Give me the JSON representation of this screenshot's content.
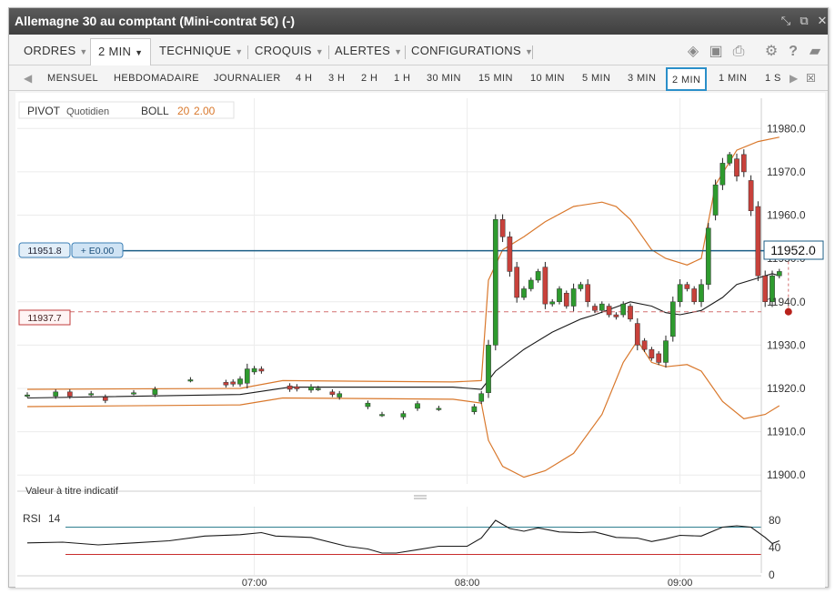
{
  "window": {
    "title": "Allemagne 30 au comptant (Mini-contrat 5€) (-)",
    "controls": [
      "fit-icon",
      "popout-icon",
      "close-icon"
    ]
  },
  "toolbar": {
    "menus": [
      {
        "label": "ORDRES"
      },
      {
        "label": "2 MIN"
      },
      {
        "label": "TECHNIQUE"
      },
      {
        "label": "CROQUIS"
      },
      {
        "label": "ALERTES"
      },
      {
        "label": "CONFIGURATIONS"
      }
    ],
    "icons": [
      "layers-icon",
      "image-icon",
      "print-icon",
      "gear-icon",
      "help-icon",
      "chat-icon"
    ]
  },
  "timeframes": {
    "items": [
      "MENSUEL",
      "HEBDOMADAIRE",
      "JOURNALIER",
      "4 H",
      "3 H",
      "2 H",
      "1 H",
      "30 MIN",
      "15 MIN",
      "10 MIN",
      "5 MIN",
      "3 MIN",
      "2 MIN",
      "1 MIN",
      "1 S"
    ],
    "selected": "2 MIN"
  },
  "legend": {
    "pivot_label": "PIVOT",
    "pivot_period": "Quotidien",
    "boll_label": "BOLL",
    "boll_period": "20",
    "boll_dev": "2.00"
  },
  "price_tags": {
    "position_price": "11951.8",
    "position_pnl": "+ E0.00",
    "order_price": "11937.7",
    "last_price": "11952.0"
  },
  "note": "Valeur à titre indicatif",
  "rsi": {
    "label": "RSI",
    "period": "14",
    "ticks": [
      "80",
      "40",
      "0"
    ]
  },
  "colors": {
    "up": "#2e9b2e",
    "down": "#c8413b",
    "band": "#d9782c",
    "midline": "#1a1a1a",
    "position_line": "#1b5e86",
    "order_line": "#d37070",
    "accent": "#2a8fc9"
  },
  "chart_data": {
    "type": "candlestick",
    "x_ticks": [
      "07:00",
      "08:00",
      "09:00"
    ],
    "y_ticks": [
      "11980.0",
      "11970.0",
      "11960.0",
      "11950.0",
      "11940.0",
      "11930.0",
      "11920.0",
      "11910.0",
      "11900.0"
    ],
    "ylim": [
      11899,
      11983
    ],
    "candles": [
      {
        "i": 0,
        "o": 11918.5,
        "c": 11918.5
      },
      {
        "i": 4,
        "o": 11918.2,
        "c": 11919.2
      },
      {
        "i": 6,
        "o": 11919.2,
        "c": 11918.2
      },
      {
        "i": 9,
        "o": 11918.8,
        "c": 11918.8
      },
      {
        "i": 11,
        "o": 11918.0,
        "c": 11917.2
      },
      {
        "i": 15,
        "o": 11919.0,
        "c": 11919.0
      },
      {
        "i": 18,
        "o": 11918.6,
        "c": 11919.8
      },
      {
        "i": 23,
        "o": 11922.0,
        "c": 11922.0
      },
      {
        "i": 28,
        "o": 11921.4,
        "c": 11920.8
      },
      {
        "i": 29,
        "o": 11921.5,
        "c": 11921.0
      },
      {
        "i": 30,
        "o": 11921.0,
        "c": 11922.2
      },
      {
        "i": 31,
        "o": 11921.2,
        "c": 11924.5
      },
      {
        "i": 32,
        "o": 11923.8,
        "c": 11924.6
      },
      {
        "i": 33,
        "o": 11924.5,
        "c": 11924.0
      },
      {
        "i": 37,
        "o": 11920.6,
        "c": 11919.8
      },
      {
        "i": 38,
        "o": 11920.4,
        "c": 11919.9
      },
      {
        "i": 40,
        "o": 11919.6,
        "c": 11920.4
      },
      {
        "i": 41,
        "o": 11920.0,
        "c": 11920.0
      },
      {
        "i": 43,
        "o": 11919.2,
        "c": 11918.6
      },
      {
        "i": 44,
        "o": 11918.0,
        "c": 11918.8
      },
      {
        "i": 48,
        "o": 11915.8,
        "c": 11916.6
      },
      {
        "i": 50,
        "o": 11914.0,
        "c": 11914.0
      },
      {
        "i": 53,
        "o": 11913.4,
        "c": 11914.2
      },
      {
        "i": 55,
        "o": 11915.4,
        "c": 11916.5
      },
      {
        "i": 58,
        "o": 11915.4,
        "c": 11915.4
      },
      {
        "i": 63,
        "o": 11914.6,
        "c": 11915.8
      },
      {
        "i": 64,
        "o": 11917.0,
        "c": 11918.8
      },
      {
        "i": 65,
        "o": 11919.0,
        "c": 11930.0
      },
      {
        "i": 66,
        "o": 11930.0,
        "c": 11959.0
      },
      {
        "i": 67,
        "o": 11959.0,
        "c": 11955.0
      },
      {
        "i": 68,
        "o": 11955.0,
        "c": 11947.0
      },
      {
        "i": 69,
        "o": 11948.0,
        "c": 11941.0
      },
      {
        "i": 70,
        "o": 11941.0,
        "c": 11943.0
      },
      {
        "i": 71,
        "o": 11943.0,
        "c": 11945.0
      },
      {
        "i": 72,
        "o": 11945.0,
        "c": 11947.0
      },
      {
        "i": 73,
        "o": 11948.0,
        "c": 11939.5
      },
      {
        "i": 74,
        "o": 11939.5,
        "c": 11940.0
      },
      {
        "i": 75,
        "o": 11940.0,
        "c": 11943.0
      },
      {
        "i": 76,
        "o": 11942.0,
        "c": 11939.0
      },
      {
        "i": 77,
        "o": 11939.0,
        "c": 11943.0
      },
      {
        "i": 78,
        "o": 11943.0,
        "c": 11944.0
      },
      {
        "i": 79,
        "o": 11944.0,
        "c": 11940.0
      },
      {
        "i": 80,
        "o": 11939.0,
        "c": 11938.0
      },
      {
        "i": 81,
        "o": 11938.0,
        "c": 11939.5
      },
      {
        "i": 82,
        "o": 11939.0,
        "c": 11937.0
      },
      {
        "i": 83,
        "o": 11937.0,
        "c": 11936.5
      },
      {
        "i": 84,
        "o": 11937.0,
        "c": 11939.5
      },
      {
        "i": 85,
        "o": 11939.0,
        "c": 11936.0
      },
      {
        "i": 86,
        "o": 11935.0,
        "c": 11930.0
      },
      {
        "i": 87,
        "o": 11931.0,
        "c": 11929.0
      },
      {
        "i": 88,
        "o": 11929.0,
        "c": 11927.0
      },
      {
        "i": 89,
        "o": 11928.0,
        "c": 11926.0
      },
      {
        "i": 90,
        "o": 11926.0,
        "c": 11931.0
      },
      {
        "i": 91,
        "o": 11932.0,
        "c": 11940.0
      },
      {
        "i": 92,
        "o": 11940.0,
        "c": 11944.0
      },
      {
        "i": 93,
        "o": 11944.0,
        "c": 11943.0
      },
      {
        "i": 94,
        "o": 11943.0,
        "c": 11940.0
      },
      {
        "i": 95,
        "o": 11940.0,
        "c": 11944.0
      },
      {
        "i": 96,
        "o": 11944.0,
        "c": 11957.0
      },
      {
        "i": 97,
        "o": 11960.0,
        "c": 11967.0
      },
      {
        "i": 98,
        "o": 11967.0,
        "c": 11972.0
      },
      {
        "i": 99,
        "o": 11972.0,
        "c": 11974.0
      },
      {
        "i": 100,
        "o": 11973.0,
        "c": 11969.0
      },
      {
        "i": 101,
        "o": 11974.0,
        "c": 11970.0
      },
      {
        "i": 102,
        "o": 11968.0,
        "c": 11961.0
      },
      {
        "i": 103,
        "o": 11962.0,
        "c": 11946.0
      },
      {
        "i": 104,
        "o": 11946.0,
        "c": 11940.0
      },
      {
        "i": 105,
        "o": 11940.0,
        "c": 11946.0
      },
      {
        "i": 106,
        "o": 11946.0,
        "c": 11947.0
      }
    ],
    "bollinger_upper": [
      [
        0,
        11919.8
      ],
      [
        30,
        11920
      ],
      [
        36,
        11921.8
      ],
      [
        60,
        11921.5
      ],
      [
        64,
        11921.8
      ],
      [
        65,
        11945
      ],
      [
        67,
        11952
      ],
      [
        70,
        11955
      ],
      [
        73,
        11958.5
      ],
      [
        77,
        11962
      ],
      [
        81,
        11963
      ],
      [
        83,
        11962
      ],
      [
        85,
        11959
      ],
      [
        88,
        11952
      ],
      [
        90,
        11950
      ],
      [
        93,
        11948.5
      ],
      [
        95,
        11950
      ],
      [
        97,
        11967
      ],
      [
        100,
        11975
      ],
      [
        103,
        11977
      ],
      [
        106,
        11978
      ]
    ],
    "bollinger_middle": [
      [
        0,
        11917.8
      ],
      [
        30,
        11918.6
      ],
      [
        37,
        11920.3
      ],
      [
        60,
        11920.3
      ],
      [
        64,
        11919.8
      ],
      [
        66,
        11924
      ],
      [
        70,
        11929
      ],
      [
        74,
        11933
      ],
      [
        78,
        11936
      ],
      [
        80,
        11937
      ],
      [
        85,
        11940
      ],
      [
        88,
        11939
      ],
      [
        90,
        11937.5
      ],
      [
        92,
        11937
      ],
      [
        95,
        11938
      ],
      [
        98,
        11941
      ],
      [
        100,
        11944
      ],
      [
        103,
        11945.5
      ],
      [
        105,
        11946.5
      ],
      [
        106,
        11946
      ]
    ],
    "bollinger_lower": [
      [
        0,
        11915.8
      ],
      [
        30,
        11916.2
      ],
      [
        36,
        11917.8
      ],
      [
        60,
        11917.5
      ],
      [
        64,
        11916.6
      ],
      [
        65,
        11908
      ],
      [
        67,
        11902
      ],
      [
        70,
        11899.5
      ],
      [
        73,
        11901
      ],
      [
        77,
        11905
      ],
      [
        81,
        11914
      ],
      [
        84,
        11926
      ],
      [
        86,
        11931
      ],
      [
        88,
        11926
      ],
      [
        90,
        11925
      ],
      [
        93,
        11925.5
      ],
      [
        95,
        11924
      ],
      [
        98,
        11917
      ],
      [
        101,
        11913
      ],
      [
        104,
        11914
      ],
      [
        106,
        11916
      ]
    ],
    "position_level": 11951.8,
    "order_level": 11937.7,
    "last_level": 11952.0,
    "rsi": {
      "ylim": [
        0,
        100
      ],
      "levels": [
        70,
        30
      ],
      "values": [
        [
          0,
          47
        ],
        [
          5,
          48
        ],
        [
          10,
          44
        ],
        [
          15,
          47
        ],
        [
          20,
          50
        ],
        [
          25,
          57
        ],
        [
          30,
          59
        ],
        [
          33,
          62
        ],
        [
          35,
          57
        ],
        [
          40,
          55
        ],
        [
          45,
          42
        ],
        [
          48,
          38
        ],
        [
          50,
          32
        ],
        [
          52,
          32
        ],
        [
          55,
          37
        ],
        [
          58,
          42
        ],
        [
          62,
          42
        ],
        [
          64,
          54
        ],
        [
          66,
          80
        ],
        [
          68,
          68
        ],
        [
          70,
          64
        ],
        [
          72,
          69
        ],
        [
          75,
          63
        ],
        [
          78,
          62
        ],
        [
          80,
          63
        ],
        [
          83,
          55
        ],
        [
          86,
          54
        ],
        [
          88,
          49
        ],
        [
          90,
          53
        ],
        [
          92,
          58
        ],
        [
          95,
          57
        ],
        [
          98,
          70
        ],
        [
          100,
          72
        ],
        [
          102,
          70
        ],
        [
          104,
          55
        ],
        [
          105,
          46
        ],
        [
          106,
          50
        ]
      ]
    }
  }
}
